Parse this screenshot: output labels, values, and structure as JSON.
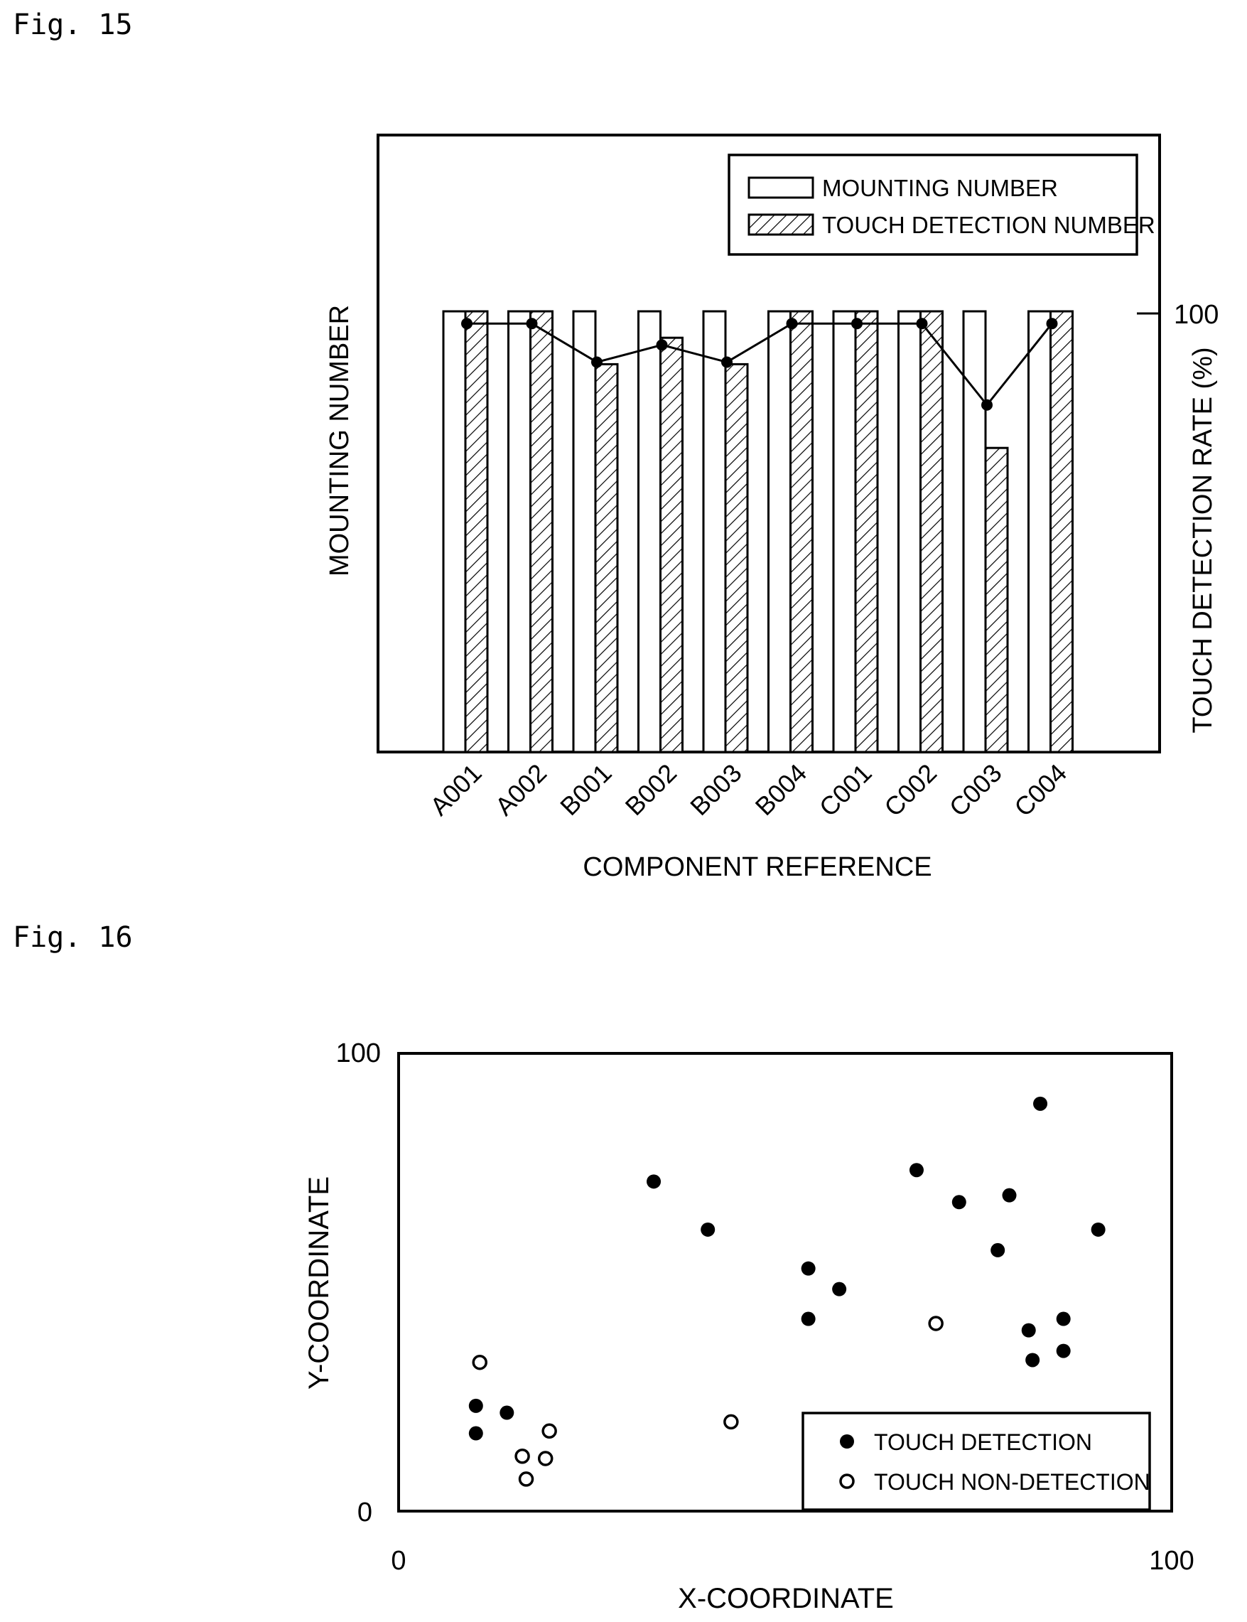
{
  "fig15_label": "Fig. 15",
  "fig16_label": "Fig. 16",
  "chart_data": [
    {
      "type": "bar",
      "categories": [
        "A001",
        "A002",
        "B001",
        "B002",
        "B003",
        "B004",
        "C001",
        "C002",
        "C003",
        "C004"
      ],
      "series": [
        {
          "name": "MOUNTING NUMBER",
          "values": [
            100,
            100,
            100,
            100,
            100,
            100,
            100,
            100,
            100,
            100
          ],
          "pattern": "plain"
        },
        {
          "name": "TOUCH DETECTION NUMBER",
          "values": [
            100,
            100,
            88,
            94,
            88,
            100,
            100,
            100,
            69,
            100
          ],
          "pattern": "hatched"
        }
      ],
      "line_series": {
        "axis": "right",
        "values": [
          100,
          100,
          91,
          95,
          91,
          100,
          100,
          100,
          81,
          100
        ]
      },
      "xlabel": "COMPONENT REFERENCE",
      "ylabel": "MOUNTING NUMBER",
      "ylabel_right": "TOUCH DETECTION RATE (%)",
      "right_ticks": [
        "100"
      ],
      "left_ylim": [
        0,
        140
      ],
      "right_ylim": [
        0,
        144
      ],
      "legend_position": "top-right",
      "grid": false
    },
    {
      "type": "scatter",
      "xlabel": "X-COORDINATE",
      "ylabel": "Y-COORDINATE",
      "xlim": [
        0,
        100
      ],
      "ylim": [
        0,
        100
      ],
      "x_ticks": [
        "0",
        "100"
      ],
      "y_ticks": [
        "0",
        "100"
      ],
      "legend_position": "bottom-right",
      "grid": false,
      "series": [
        {
          "name": "TOUCH DETECTION",
          "marker": "filled",
          "points": [
            [
              10,
              23
            ],
            [
              10,
              17
            ],
            [
              14,
              21.5
            ],
            [
              33,
              72
            ],
            [
              40,
              61.5
            ],
            [
              53,
              53
            ],
            [
              53,
              42
            ],
            [
              57,
              48.5
            ],
            [
              67,
              74.5
            ],
            [
              72.5,
              67.5
            ],
            [
              77.5,
              57
            ],
            [
              79,
              69
            ],
            [
              81.5,
              39.5
            ],
            [
              82,
              33
            ],
            [
              83,
              89
            ],
            [
              86,
              42
            ],
            [
              86,
              35
            ],
            [
              90.5,
              61.5
            ]
          ]
        },
        {
          "name": "TOUCH NON-DETECTION",
          "marker": "hollow",
          "points": [
            [
              10.5,
              32.5
            ],
            [
              16,
              12
            ],
            [
              16.5,
              7
            ],
            [
              19,
              11.5
            ],
            [
              19.5,
              17.5
            ],
            [
              43,
              19.5
            ],
            [
              69.5,
              41
            ]
          ]
        }
      ]
    }
  ]
}
